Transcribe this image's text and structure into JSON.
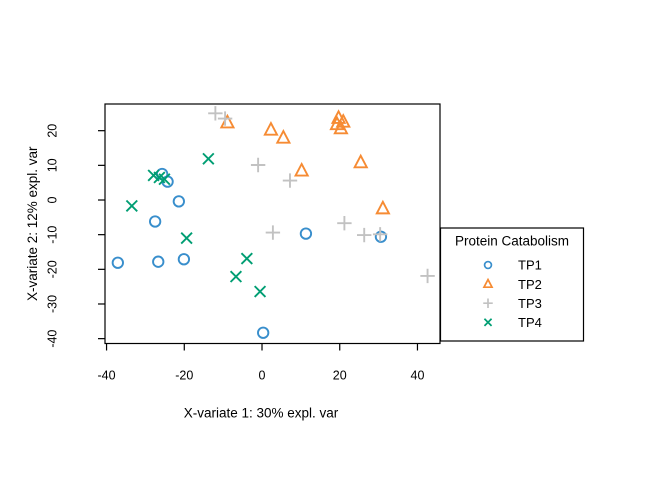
{
  "figure": {
    "background": "#FFFFFF"
  },
  "chart_data": {
    "type": "scatter",
    "title": "",
    "xlabel": "X-variate 1: 30% expl. var",
    "ylabel": "X-variate 2: 12% expl. var",
    "xlim": [
      -40.4,
      45.8
    ],
    "ylim": [
      -41.4,
      27.7
    ],
    "x_ticks": [
      -40,
      -20,
      0,
      20,
      40
    ],
    "y_ticks": [
      20,
      10,
      0,
      -10,
      -20,
      -30,
      -40
    ],
    "grid": false,
    "frame": true,
    "legend": {
      "title": "Protein Catabolism",
      "position": "right-outside",
      "entries": [
        {
          "label": "TP1",
          "marker": "circle",
          "color": "#388ECC"
        },
        {
          "label": "TP2",
          "marker": "triangle-up",
          "color": "#F68B33"
        },
        {
          "label": "TP3",
          "marker": "plus",
          "color": "#C2C2C2"
        },
        {
          "label": "TP4",
          "marker": "cross",
          "color": "#009E73"
        }
      ]
    },
    "series": [
      {
        "name": "TP1",
        "marker": "circle",
        "color": "#388ECC",
        "points": [
          [
            -25.7,
            7.5
          ],
          [
            -24.3,
            5.3
          ],
          [
            -21.4,
            -0.4
          ],
          [
            -27.5,
            -6.2
          ],
          [
            -37.1,
            -18.1
          ],
          [
            -26.7,
            -17.8
          ],
          [
            -20.1,
            -17.1
          ],
          [
            11.3,
            -9.7
          ],
          [
            30.6,
            -10.6
          ],
          [
            0.3,
            -38.3
          ]
        ]
      },
      {
        "name": "TP2",
        "marker": "triangle-up",
        "color": "#F68B33",
        "points": [
          [
            -8.9,
            22.3
          ],
          [
            2.3,
            20.2
          ],
          [
            5.5,
            17.9
          ],
          [
            19.7,
            23.6
          ],
          [
            20.9,
            22.5
          ],
          [
            19.3,
            21.8
          ],
          [
            20.3,
            20.6
          ],
          [
            25.4,
            10.8
          ],
          [
            10.2,
            8.4
          ],
          [
            31.1,
            -2.5
          ]
        ]
      },
      {
        "name": "TP3",
        "marker": "plus",
        "color": "#C2C2C2",
        "points": [
          [
            -12.0,
            25.0
          ],
          [
            -9.5,
            23.5
          ],
          [
            -1.0,
            10.1
          ],
          [
            7.2,
            5.6
          ],
          [
            2.8,
            -9.4
          ],
          [
            21.2,
            -6.7
          ],
          [
            26.3,
            -10.1
          ],
          [
            30.4,
            -9.9
          ],
          [
            42.6,
            -21.9
          ]
        ]
      },
      {
        "name": "TP4",
        "marker": "cross",
        "color": "#009E73",
        "points": [
          [
            -13.8,
            11.9
          ],
          [
            -27.9,
            7.1
          ],
          [
            -26.4,
            6.5
          ],
          [
            -25.1,
            6.0
          ],
          [
            -33.5,
            -1.7
          ],
          [
            -19.4,
            -11.0
          ],
          [
            -3.9,
            -16.9
          ],
          [
            -6.7,
            -22.1
          ],
          [
            -0.5,
            -26.4
          ]
        ]
      }
    ]
  }
}
